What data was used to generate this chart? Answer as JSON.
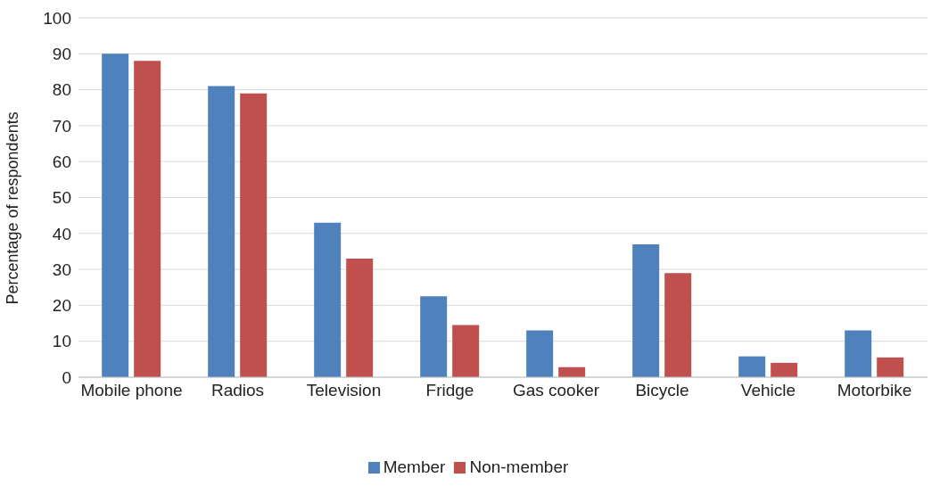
{
  "chart_data": {
    "type": "bar",
    "ylabel": "Percentage of respondents",
    "categories": [
      "Mobile phone",
      "Radios",
      "Television",
      "Fridge",
      "Gas cooker",
      "Bicycle",
      "Vehicle",
      "Motorbike"
    ],
    "series": [
      {
        "name": "Member",
        "color": "#4f81bd",
        "values": [
          90,
          81,
          43,
          22.5,
          13,
          37,
          5.8,
          13
        ]
      },
      {
        "name": "Non-member",
        "color": "#c0504d",
        "values": [
          88,
          79,
          33,
          14.5,
          2.8,
          29,
          4,
          5.5
        ]
      }
    ],
    "ylim": [
      0,
      100
    ],
    "yticks": [
      0,
      10,
      20,
      30,
      40,
      50,
      60,
      70,
      80,
      90,
      100
    ],
    "grid": "y",
    "legend": "bottom"
  }
}
